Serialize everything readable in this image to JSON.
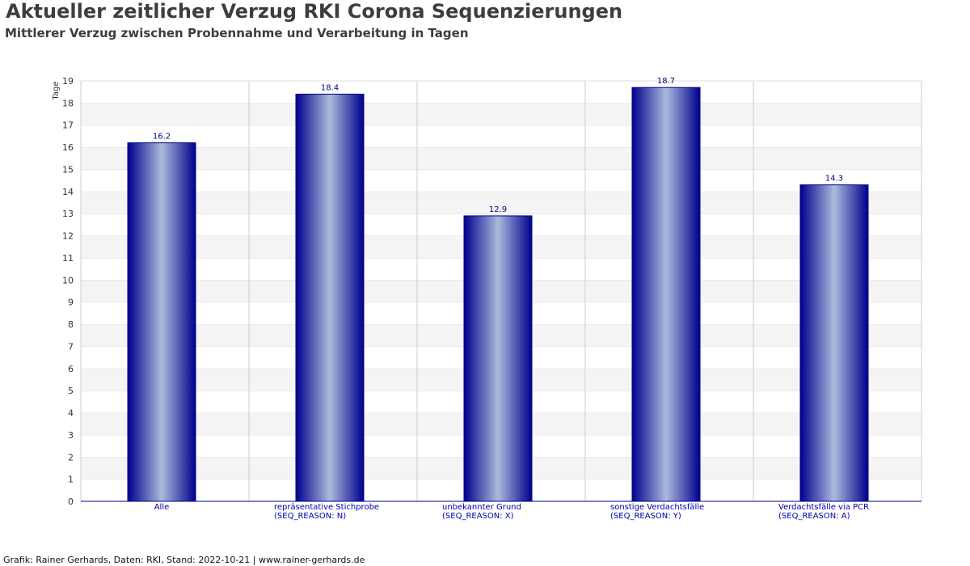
{
  "chart_data": {
    "type": "bar",
    "title": "Aktueller zeitlicher Verzug RKI Corona Sequenzierungen",
    "subtitle": "Mittlerer Verzug zwischen Probennahme und Verarbeitung in Tagen",
    "ylabel": "Tage",
    "xlabel": "",
    "categories": [
      [
        "Alle"
      ],
      [
        "repräsentative Stichprobe",
        "(SEQ_REASON: N)"
      ],
      [
        "unbekannter Grund",
        "(SEQ_REASON: X)"
      ],
      [
        "sonstige Verdachtsfälle",
        "(SEQ_REASON: Y)"
      ],
      [
        "Verdachtsfälle via PCR",
        "(SEQ_REASON: A)"
      ]
    ],
    "values": [
      16.2,
      18.4,
      12.9,
      18.7,
      14.3
    ],
    "value_labels": [
      "16.2",
      "18.4",
      "12.9",
      "18.7",
      "14.3"
    ],
    "ylim": [
      0,
      19
    ],
    "yticks": [
      "0",
      "1",
      "2",
      "3",
      "4",
      "5",
      "6",
      "7",
      "8",
      "9",
      "10",
      "11",
      "12",
      "13",
      "14",
      "15",
      "16",
      "17",
      "18",
      "19"
    ],
    "grid": true,
    "bar_colors": {
      "edge": "#00008b",
      "center": "#aabbdd"
    }
  },
  "footer": "Grafik: Rainer Gerhards, Daten: RKI, Stand: 2022-10-21 | www.rainer-gerhards.de"
}
